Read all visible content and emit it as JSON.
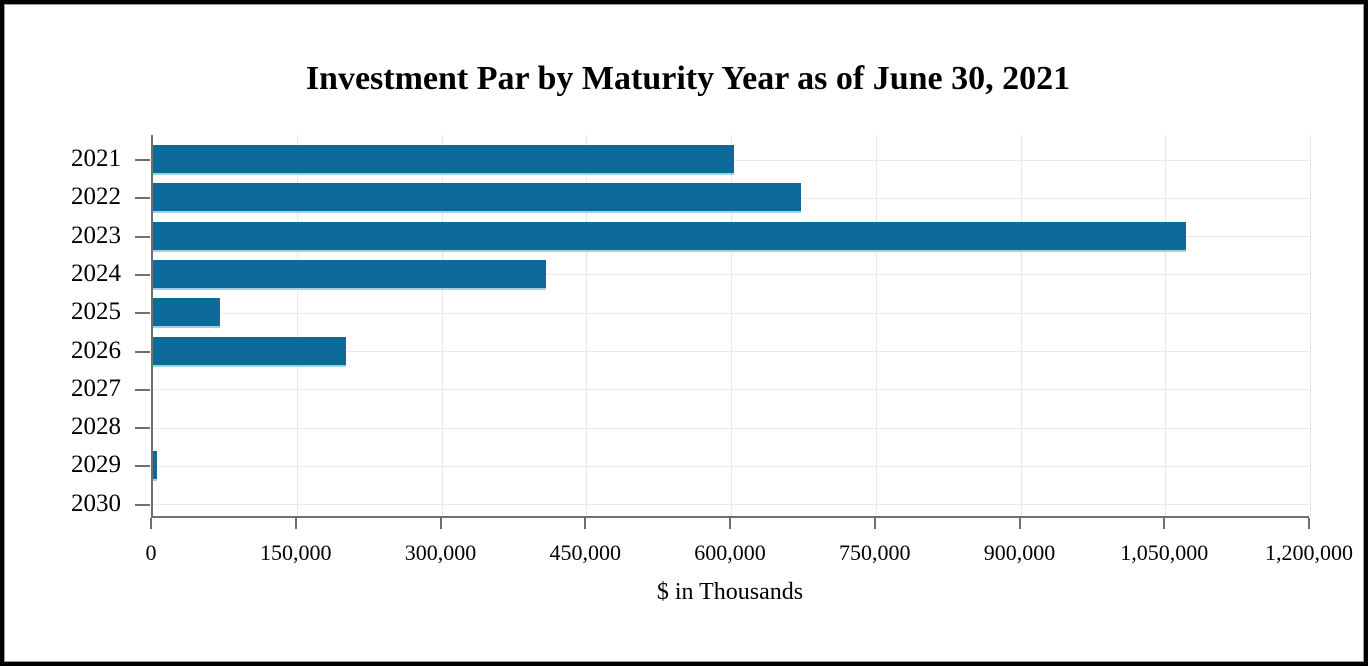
{
  "chart": {
    "title": "Investment Par by Maturity Year as of June 30, 2021",
    "xlabel": "$ in Thousands",
    "colors": {
      "bar": "#0d6b9a",
      "bar_bottom_edge": "#a6cfe5",
      "axis_line": "#6f6f6f",
      "gridline": "#e7e9e9",
      "text": "#000000",
      "frame_border": "#000000",
      "background": "#ffffff"
    }
  },
  "chart_data": {
    "type": "bar",
    "orientation": "horizontal",
    "title": "Investment Par by Maturity Year as of June 30, 2021",
    "xlabel": "$ in Thousands",
    "ylabel": "",
    "categories": [
      "2021",
      "2022",
      "2023",
      "2024",
      "2025",
      "2026",
      "2027",
      "2028",
      "2029",
      "2030"
    ],
    "values": [
      602000,
      672000,
      1070000,
      407000,
      69000,
      200000,
      0,
      0,
      4000,
      0
    ],
    "xlim": [
      0,
      1200000
    ],
    "xticks": [
      0,
      150000,
      300000,
      450000,
      600000,
      750000,
      900000,
      1050000,
      1200000
    ],
    "xtick_labels": [
      "0",
      "150,000",
      "300,000",
      "450,000",
      "600,000",
      "750,000",
      "900,000",
      "1,050,000",
      "1,200,000"
    ],
    "grid": true,
    "legend": false
  }
}
